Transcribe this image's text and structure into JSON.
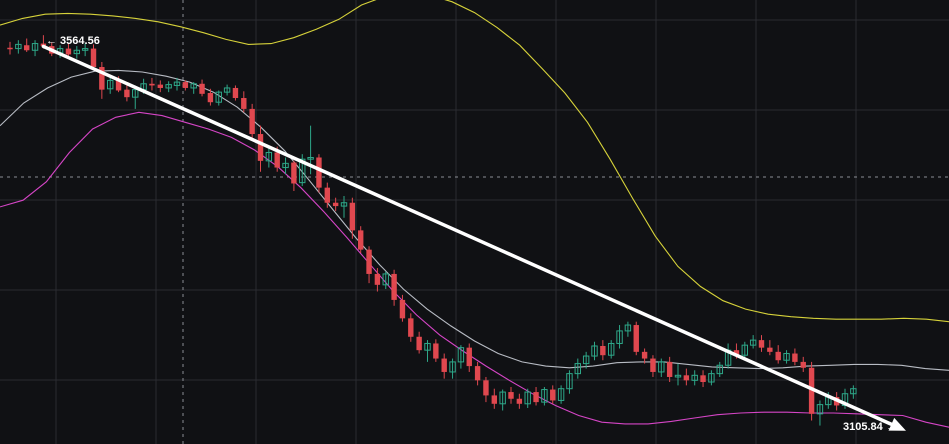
{
  "chart_data": {
    "type": "candlestick",
    "title": "",
    "xlabel": "",
    "ylabel": "",
    "ylim": [
      3090,
      3620
    ],
    "grid": true,
    "legend": "none",
    "colors": {
      "background": "#101114",
      "up": "#2ea889",
      "down": "#e0484f",
      "bb_upper": "#d6d23a",
      "bb_middle": "#b8bcc4",
      "bb_lower": "#d545c6",
      "trend_arrow": "#ffffff",
      "grid": "#2a2c31",
      "crosshair": "#8a8d94"
    },
    "candles": [
      {
        "o": 3563,
        "h": 3570,
        "l": 3555,
        "c": 3562
      },
      {
        "o": 3562,
        "h": 3572,
        "l": 3556,
        "c": 3567
      },
      {
        "o": 3566,
        "h": 3574,
        "l": 3558,
        "c": 3560
      },
      {
        "o": 3560,
        "h": 3572,
        "l": 3553,
        "c": 3568
      },
      {
        "o": 3568,
        "h": 3578,
        "l": 3562,
        "c": 3565
      },
      {
        "o": 3565,
        "h": 3569,
        "l": 3553,
        "c": 3556
      },
      {
        "o": 3557,
        "h": 3566,
        "l": 3551,
        "c": 3562
      },
      {
        "o": 3562,
        "h": 3568,
        "l": 3552,
        "c": 3555
      },
      {
        "o": 3556,
        "h": 3565,
        "l": 3550,
        "c": 3560
      },
      {
        "o": 3560,
        "h": 3568,
        "l": 3553,
        "c": 3562
      },
      {
        "o": 3562,
        "h": 3567,
        "l": 3536,
        "c": 3540
      },
      {
        "o": 3540,
        "h": 3546,
        "l": 3502,
        "c": 3513
      },
      {
        "o": 3514,
        "h": 3530,
        "l": 3508,
        "c": 3524
      },
      {
        "o": 3524,
        "h": 3529,
        "l": 3510,
        "c": 3512
      },
      {
        "o": 3513,
        "h": 3520,
        "l": 3499,
        "c": 3504
      },
      {
        "o": 3504,
        "h": 3518,
        "l": 3490,
        "c": 3513
      },
      {
        "o": 3513,
        "h": 3526,
        "l": 3508,
        "c": 3520
      },
      {
        "o": 3520,
        "h": 3527,
        "l": 3512,
        "c": 3518
      },
      {
        "o": 3519,
        "h": 3524,
        "l": 3510,
        "c": 3515
      },
      {
        "o": 3515,
        "h": 3523,
        "l": 3510,
        "c": 3519
      },
      {
        "o": 3518,
        "h": 3527,
        "l": 3512,
        "c": 3522
      },
      {
        "o": 3522,
        "h": 3524,
        "l": 3512,
        "c": 3515
      },
      {
        "o": 3515,
        "h": 3522,
        "l": 3508,
        "c": 3520
      },
      {
        "o": 3520,
        "h": 3525,
        "l": 3505,
        "c": 3508
      },
      {
        "o": 3509,
        "h": 3514,
        "l": 3494,
        "c": 3498
      },
      {
        "o": 3498,
        "h": 3512,
        "l": 3494,
        "c": 3510
      },
      {
        "o": 3510,
        "h": 3519,
        "l": 3506,
        "c": 3515
      },
      {
        "o": 3515,
        "h": 3518,
        "l": 3500,
        "c": 3503
      },
      {
        "o": 3503,
        "h": 3511,
        "l": 3486,
        "c": 3490
      },
      {
        "o": 3490,
        "h": 3496,
        "l": 3455,
        "c": 3460
      },
      {
        "o": 3460,
        "h": 3470,
        "l": 3415,
        "c": 3428
      },
      {
        "o": 3428,
        "h": 3445,
        "l": 3420,
        "c": 3438
      },
      {
        "o": 3438,
        "h": 3445,
        "l": 3415,
        "c": 3420
      },
      {
        "o": 3420,
        "h": 3432,
        "l": 3412,
        "c": 3425
      },
      {
        "o": 3426,
        "h": 3428,
        "l": 3392,
        "c": 3401
      },
      {
        "o": 3402,
        "h": 3436,
        "l": 3398,
        "c": 3430
      },
      {
        "o": 3430,
        "h": 3470,
        "l": 3412,
        "c": 3432
      },
      {
        "o": 3432,
        "h": 3436,
        "l": 3390,
        "c": 3396
      },
      {
        "o": 3396,
        "h": 3402,
        "l": 3372,
        "c": 3378
      },
      {
        "o": 3378,
        "h": 3384,
        "l": 3368,
        "c": 3374
      },
      {
        "o": 3374,
        "h": 3386,
        "l": 3360,
        "c": 3378
      },
      {
        "o": 3378,
        "h": 3384,
        "l": 3335,
        "c": 3345
      },
      {
        "o": 3345,
        "h": 3350,
        "l": 3318,
        "c": 3322
      },
      {
        "o": 3322,
        "h": 3326,
        "l": 3282,
        "c": 3293
      },
      {
        "o": 3293,
        "h": 3300,
        "l": 3272,
        "c": 3280
      },
      {
        "o": 3280,
        "h": 3296,
        "l": 3275,
        "c": 3293
      },
      {
        "o": 3293,
        "h": 3298,
        "l": 3255,
        "c": 3262
      },
      {
        "o": 3262,
        "h": 3268,
        "l": 3236,
        "c": 3240
      },
      {
        "o": 3240,
        "h": 3246,
        "l": 3212,
        "c": 3218
      },
      {
        "o": 3218,
        "h": 3224,
        "l": 3198,
        "c": 3202
      },
      {
        "o": 3202,
        "h": 3214,
        "l": 3188,
        "c": 3210
      },
      {
        "o": 3210,
        "h": 3215,
        "l": 3188,
        "c": 3192
      },
      {
        "o": 3192,
        "h": 3198,
        "l": 3168,
        "c": 3176
      },
      {
        "o": 3176,
        "h": 3192,
        "l": 3168,
        "c": 3188
      },
      {
        "o": 3188,
        "h": 3208,
        "l": 3180,
        "c": 3205
      },
      {
        "o": 3205,
        "h": 3210,
        "l": 3176,
        "c": 3183
      },
      {
        "o": 3183,
        "h": 3188,
        "l": 3160,
        "c": 3166
      },
      {
        "o": 3166,
        "h": 3170,
        "l": 3140,
        "c": 3148
      },
      {
        "o": 3148,
        "h": 3156,
        "l": 3132,
        "c": 3138
      },
      {
        "o": 3138,
        "h": 3155,
        "l": 3130,
        "c": 3152
      },
      {
        "o": 3152,
        "h": 3158,
        "l": 3138,
        "c": 3144
      },
      {
        "o": 3144,
        "h": 3150,
        "l": 3132,
        "c": 3138
      },
      {
        "o": 3138,
        "h": 3156,
        "l": 3133,
        "c": 3152
      },
      {
        "o": 3152,
        "h": 3158,
        "l": 3136,
        "c": 3140
      },
      {
        "o": 3140,
        "h": 3158,
        "l": 3136,
        "c": 3155
      },
      {
        "o": 3155,
        "h": 3160,
        "l": 3138,
        "c": 3142
      },
      {
        "o": 3142,
        "h": 3160,
        "l": 3138,
        "c": 3156
      },
      {
        "o": 3156,
        "h": 3178,
        "l": 3150,
        "c": 3174
      },
      {
        "o": 3174,
        "h": 3192,
        "l": 3168,
        "c": 3186
      },
      {
        "o": 3186,
        "h": 3200,
        "l": 3180,
        "c": 3195
      },
      {
        "o": 3195,
        "h": 3212,
        "l": 3190,
        "c": 3207
      },
      {
        "o": 3207,
        "h": 3214,
        "l": 3190,
        "c": 3196
      },
      {
        "o": 3196,
        "h": 3214,
        "l": 3192,
        "c": 3210
      },
      {
        "o": 3210,
        "h": 3232,
        "l": 3204,
        "c": 3225
      },
      {
        "o": 3225,
        "h": 3236,
        "l": 3218,
        "c": 3232
      },
      {
        "o": 3232,
        "h": 3236,
        "l": 3196,
        "c": 3200
      },
      {
        "o": 3200,
        "h": 3204,
        "l": 3186,
        "c": 3192
      },
      {
        "o": 3192,
        "h": 3196,
        "l": 3170,
        "c": 3176
      },
      {
        "o": 3176,
        "h": 3192,
        "l": 3170,
        "c": 3188
      },
      {
        "o": 3188,
        "h": 3194,
        "l": 3164,
        "c": 3170
      },
      {
        "o": 3170,
        "h": 3186,
        "l": 3160,
        "c": 3172
      },
      {
        "o": 3172,
        "h": 3180,
        "l": 3160,
        "c": 3166
      },
      {
        "o": 3166,
        "h": 3178,
        "l": 3160,
        "c": 3172
      },
      {
        "o": 3172,
        "h": 3178,
        "l": 3158,
        "c": 3164
      },
      {
        "o": 3164,
        "h": 3178,
        "l": 3160,
        "c": 3174
      },
      {
        "o": 3174,
        "h": 3188,
        "l": 3170,
        "c": 3184
      },
      {
        "o": 3184,
        "h": 3210,
        "l": 3180,
        "c": 3202
      },
      {
        "o": 3202,
        "h": 3210,
        "l": 3192,
        "c": 3196
      },
      {
        "o": 3196,
        "h": 3212,
        "l": 3192,
        "c": 3208
      },
      {
        "o": 3208,
        "h": 3220,
        "l": 3204,
        "c": 3214
      },
      {
        "o": 3214,
        "h": 3220,
        "l": 3200,
        "c": 3205
      },
      {
        "o": 3205,
        "h": 3214,
        "l": 3196,
        "c": 3200
      },
      {
        "o": 3200,
        "h": 3208,
        "l": 3186,
        "c": 3190
      },
      {
        "o": 3190,
        "h": 3202,
        "l": 3186,
        "c": 3198
      },
      {
        "o": 3198,
        "h": 3204,
        "l": 3184,
        "c": 3188
      },
      {
        "o": 3188,
        "h": 3194,
        "l": 3176,
        "c": 3181
      },
      {
        "o": 3181,
        "h": 3188,
        "l": 3118,
        "c": 3126
      },
      {
        "o": 3126,
        "h": 3142,
        "l": 3112,
        "c": 3137
      },
      {
        "o": 3137,
        "h": 3152,
        "l": 3132,
        "c": 3146
      },
      {
        "o": 3146,
        "h": 3152,
        "l": 3130,
        "c": 3136
      },
      {
        "o": 3136,
        "h": 3156,
        "l": 3132,
        "c": 3150
      },
      {
        "o": 3150,
        "h": 3160,
        "l": 3144,
        "c": 3156
      }
    ],
    "series": [
      {
        "values": [
          3590,
          3598,
          3603,
          3604,
          3603,
          3601,
          3598,
          3594,
          3588,
          3581,
          3573,
          3567,
          3568,
          3575,
          3585,
          3597,
          3614,
          3624,
          3627,
          3626,
          3618,
          3605,
          3587,
          3566,
          3538,
          3509,
          3474,
          3430,
          3383,
          3338,
          3302,
          3278,
          3261,
          3251,
          3245,
          3242,
          3240,
          3239,
          3239,
          3239,
          3240,
          3239,
          3236
        ]
      },
      {
        "values": [
          3470,
          3497,
          3515,
          3528,
          3535,
          3536,
          3534,
          3529,
          3522,
          3510,
          3492,
          3468,
          3440,
          3406,
          3371,
          3336,
          3304,
          3275,
          3251,
          3231,
          3213,
          3198,
          3188,
          3183,
          3181,
          3183,
          3187,
          3188,
          3188,
          3185,
          3182,
          3181,
          3180,
          3181,
          3183,
          3184,
          3185,
          3185,
          3184,
          3180,
          3178
        ]
      },
      {
        "values": [
          3373,
          3381,
          3403,
          3438,
          3466,
          3480,
          3486,
          3482,
          3474,
          3466,
          3456,
          3441,
          3421,
          3396,
          3367,
          3336,
          3304,
          3272,
          3244,
          3220,
          3201,
          3183,
          3166,
          3150,
          3136,
          3124,
          3116,
          3114,
          3114,
          3117,
          3121,
          3125,
          3127,
          3128,
          3128,
          3127,
          3127,
          3126,
          3125,
          3124,
          3116,
          3110
        ]
      }
    ],
    "annotations": [
      {
        "text": "← 3564.56",
        "value": 3564.56
      },
      {
        "text": "3105.84 →",
        "value": 3105.84
      }
    ],
    "trendline": {
      "from": 3564.56,
      "to": 3105.84
    }
  }
}
